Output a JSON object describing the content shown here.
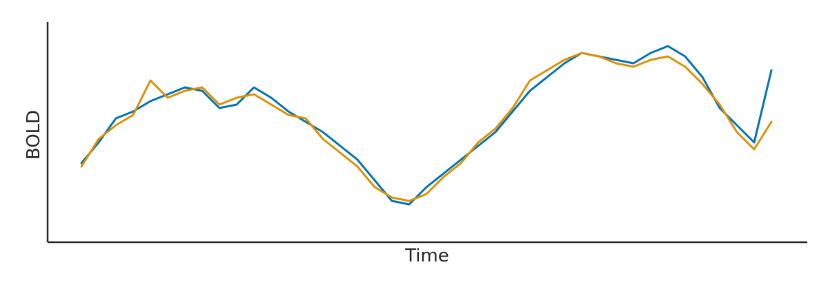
{
  "chart_data": {
    "type": "line",
    "title": "",
    "xlabel": "Time",
    "ylabel": "BOLD",
    "xticks": [],
    "yticks": [],
    "grid": false,
    "legend": "none",
    "xlim": [
      0,
      200
    ],
    "ylim": [
      -3.2,
      3.2
    ],
    "series": [
      {
        "color": "#0173b2",
        "x": [
          0,
          5,
          10,
          15,
          20,
          25,
          30,
          35,
          40,
          45,
          50,
          55,
          60,
          65,
          70,
          75,
          80,
          85,
          90,
          95,
          100,
          105,
          110,
          115,
          120,
          125,
          130,
          135,
          140,
          145,
          150,
          155,
          160,
          165,
          170,
          175,
          180,
          185,
          190,
          195,
          200
        ],
        "values": [
          -0.9,
          -0.3,
          0.4,
          0.6,
          0.9,
          1.1,
          1.3,
          1.2,
          0.7,
          0.8,
          1.3,
          1.0,
          0.6,
          0.3,
          0.0,
          -0.4,
          -0.8,
          -1.4,
          -2.0,
          -2.1,
          -1.6,
          -1.2,
          -0.8,
          -0.4,
          0.0,
          0.6,
          1.2,
          1.6,
          2.0,
          2.3,
          2.2,
          2.1,
          2.0,
          2.3,
          2.5,
          2.2,
          1.6,
          0.7,
          0.2,
          -0.3,
          1.8
        ]
      },
      {
        "color": "#de8f05",
        "x": [
          0,
          5,
          10,
          15,
          20,
          25,
          30,
          35,
          40,
          45,
          50,
          55,
          60,
          65,
          70,
          75,
          80,
          85,
          90,
          95,
          100,
          105,
          110,
          115,
          120,
          125,
          130,
          135,
          140,
          145,
          150,
          155,
          160,
          165,
          170,
          175,
          180,
          185,
          190,
          195,
          200
        ],
        "values": [
          -1.0,
          -0.2,
          0.2,
          0.5,
          1.5,
          1.0,
          1.2,
          1.3,
          0.8,
          1.0,
          1.1,
          0.8,
          0.5,
          0.4,
          -0.2,
          -0.6,
          -1.0,
          -1.6,
          -1.9,
          -2.0,
          -1.8,
          -1.3,
          -0.9,
          -0.3,
          0.1,
          0.7,
          1.5,
          1.8,
          2.1,
          2.3,
          2.2,
          2.0,
          1.9,
          2.1,
          2.2,
          1.9,
          1.4,
          0.8,
          0.0,
          -0.5,
          0.3
        ]
      }
    ]
  }
}
